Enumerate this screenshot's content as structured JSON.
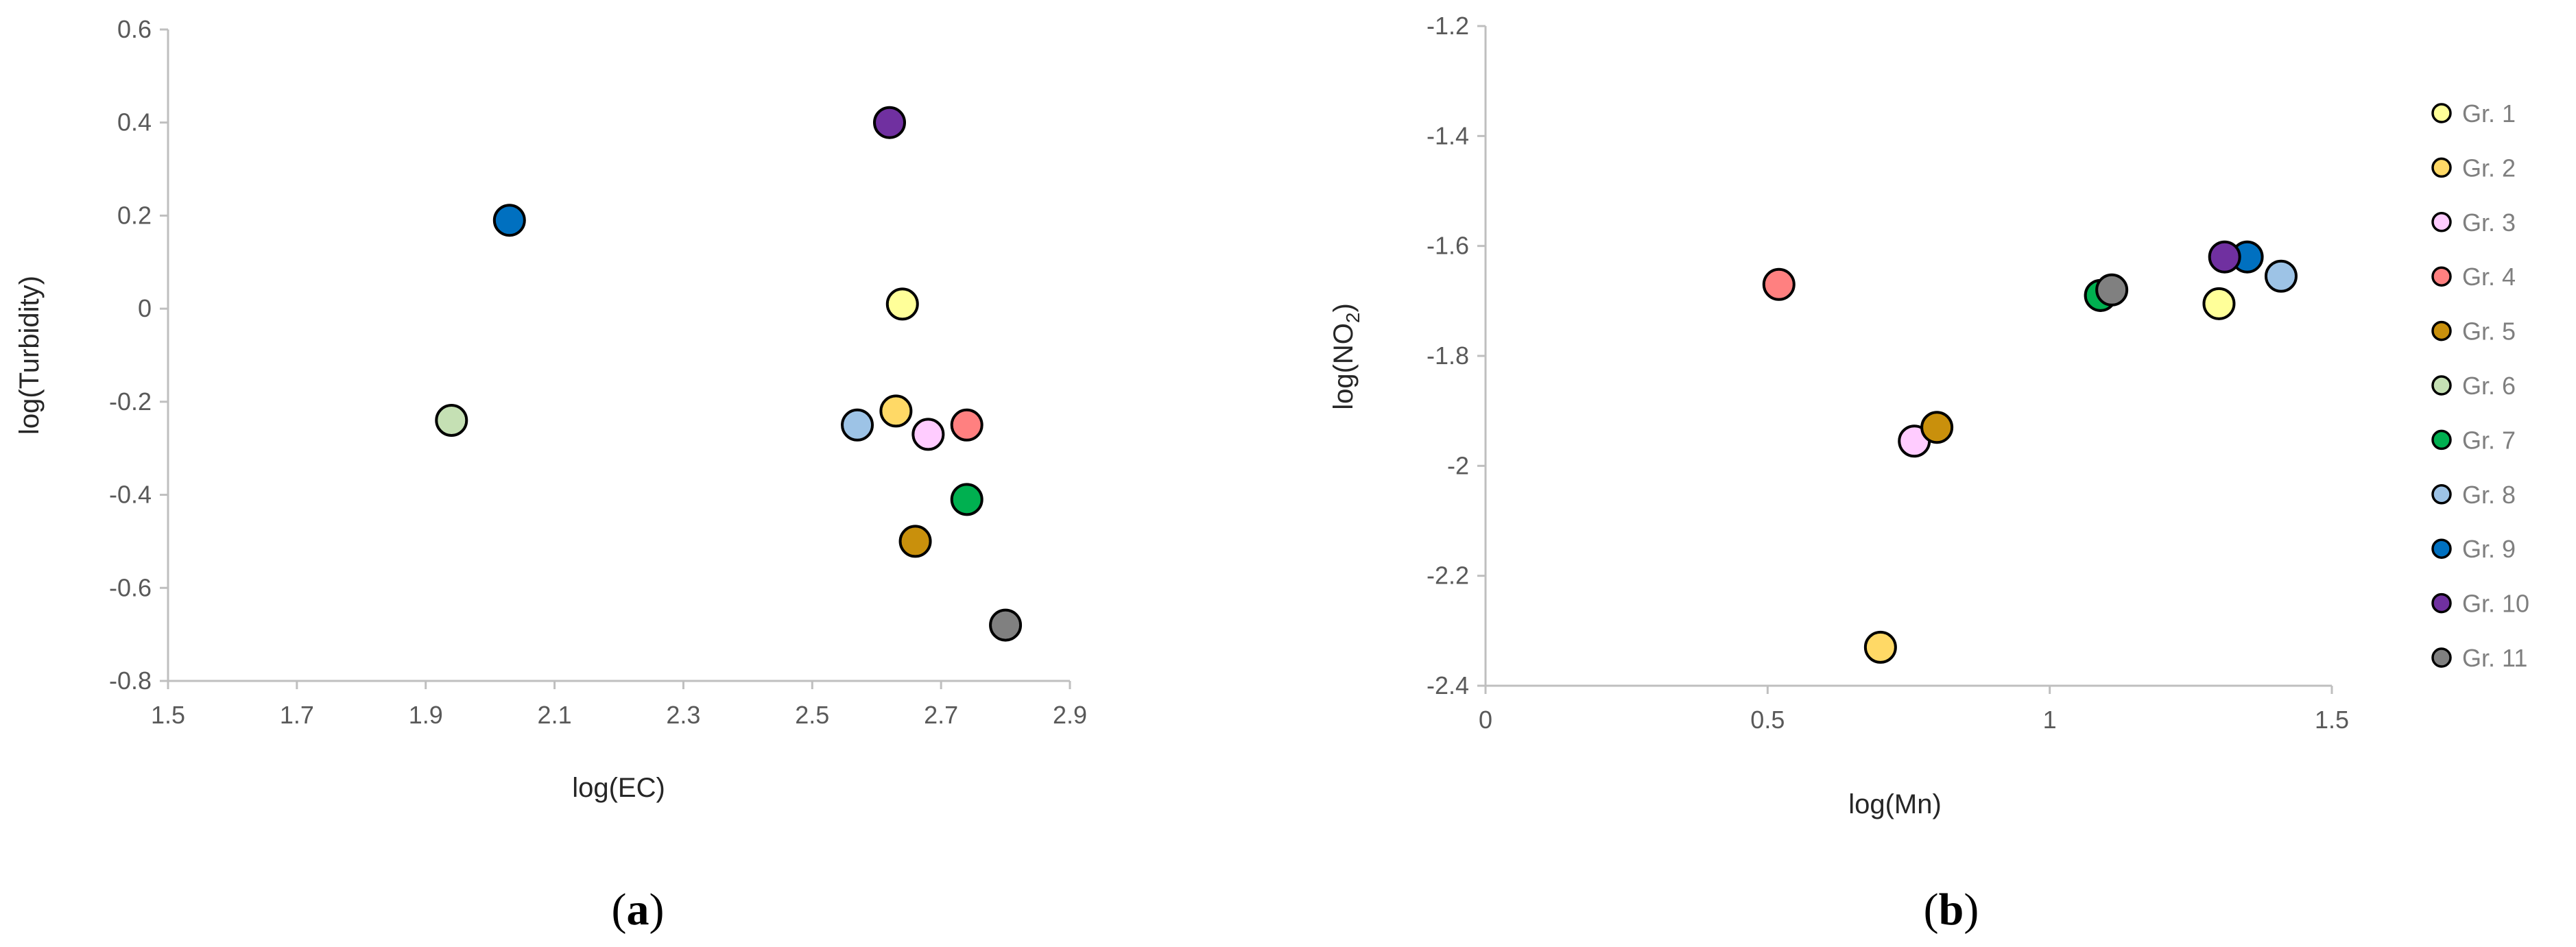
{
  "chart_data": [
    {
      "type": "scatter",
      "panel_label": "a",
      "xlabel": "log(EC)",
      "ylabel": "log(Turbidity)",
      "xlim": [
        1.5,
        2.9
      ],
      "ylim": [
        -0.8,
        0.6
      ],
      "xticks": [
        "1.5",
        "1.7",
        "1.9",
        "2.1",
        "2.3",
        "2.5",
        "2.7",
        "2.9"
      ],
      "yticks": [
        "-0.8",
        "-0.6",
        "-0.4",
        "-0.2",
        "0",
        "0.2",
        "0.4",
        "0.6"
      ],
      "grid": false,
      "points": [
        {
          "group": "Gr. 1",
          "x": 2.64,
          "y": 0.01
        },
        {
          "group": "Gr. 2",
          "x": 2.63,
          "y": -0.22
        },
        {
          "group": "Gr. 3",
          "x": 2.68,
          "y": -0.27
        },
        {
          "group": "Gr. 4",
          "x": 2.74,
          "y": -0.25
        },
        {
          "group": "Gr. 5",
          "x": 2.66,
          "y": -0.5
        },
        {
          "group": "Gr. 6",
          "x": 1.94,
          "y": -0.24
        },
        {
          "group": "Gr. 7",
          "x": 2.74,
          "y": -0.41
        },
        {
          "group": "Gr. 8",
          "x": 2.57,
          "y": -0.25
        },
        {
          "group": "Gr. 9",
          "x": 2.03,
          "y": 0.19
        },
        {
          "group": "Gr. 10",
          "x": 2.62,
          "y": 0.4
        },
        {
          "group": "Gr. 11",
          "x": 2.8,
          "y": -0.68
        }
      ]
    },
    {
      "type": "scatter",
      "panel_label": "b",
      "xlabel": "log(Mn)",
      "ylabel_main": "log(NO",
      "ylabel_sub": "2",
      "ylabel_end": ")",
      "xlim": [
        0,
        1.5
      ],
      "ylim": [
        -2.4,
        -1.2
      ],
      "xticks": [
        "0",
        "0.5",
        "1",
        "1.5"
      ],
      "yticks": [
        "-2.4",
        "-2.2",
        "-2",
        "-1.8",
        "-1.6",
        "-1.4",
        "-1.2"
      ],
      "grid": false,
      "legend_position": "right",
      "points": [
        {
          "group": "Gr. 1",
          "x": 1.3,
          "y": -1.705
        },
        {
          "group": "Gr. 2",
          "x": 0.7,
          "y": -2.33
        },
        {
          "group": "Gr. 3",
          "x": 0.76,
          "y": -1.955
        },
        {
          "group": "Gr. 4",
          "x": 0.52,
          "y": -1.67
        },
        {
          "group": "Gr. 5",
          "x": 0.8,
          "y": -1.93
        },
        {
          "group": "Gr. 6",
          "x": 1.09,
          "y": -1.69
        },
        {
          "group": "Gr. 7",
          "x": 1.09,
          "y": -1.69
        },
        {
          "group": "Gr. 8",
          "x": 1.41,
          "y": -1.655
        },
        {
          "group": "Gr. 9",
          "x": 1.35,
          "y": -1.62
        },
        {
          "group": "Gr. 10",
          "x": 1.31,
          "y": -1.62
        },
        {
          "group": "Gr. 11",
          "x": 1.11,
          "y": -1.68
        }
      ]
    }
  ],
  "legend": [
    {
      "label": "Gr. 1",
      "color": "#FFFF99"
    },
    {
      "label": "Gr. 2",
      "color": "#FFD966"
    },
    {
      "label": "Gr. 3",
      "color": "#FFCCFF"
    },
    {
      "label": "Gr. 4",
      "color": "#FF8080"
    },
    {
      "label": "Gr. 5",
      "color": "#C9900C"
    },
    {
      "label": "Gr. 6",
      "color": "#C5E0B4"
    },
    {
      "label": "Gr. 7",
      "color": "#00B050"
    },
    {
      "label": "Gr. 8",
      "color": "#9DC3E6"
    },
    {
      "label": "Gr. 9",
      "color": "#0070C0"
    },
    {
      "label": "Gr. 10",
      "color": "#7030A0"
    },
    {
      "label": "Gr. 11",
      "color": "#808080"
    }
  ]
}
